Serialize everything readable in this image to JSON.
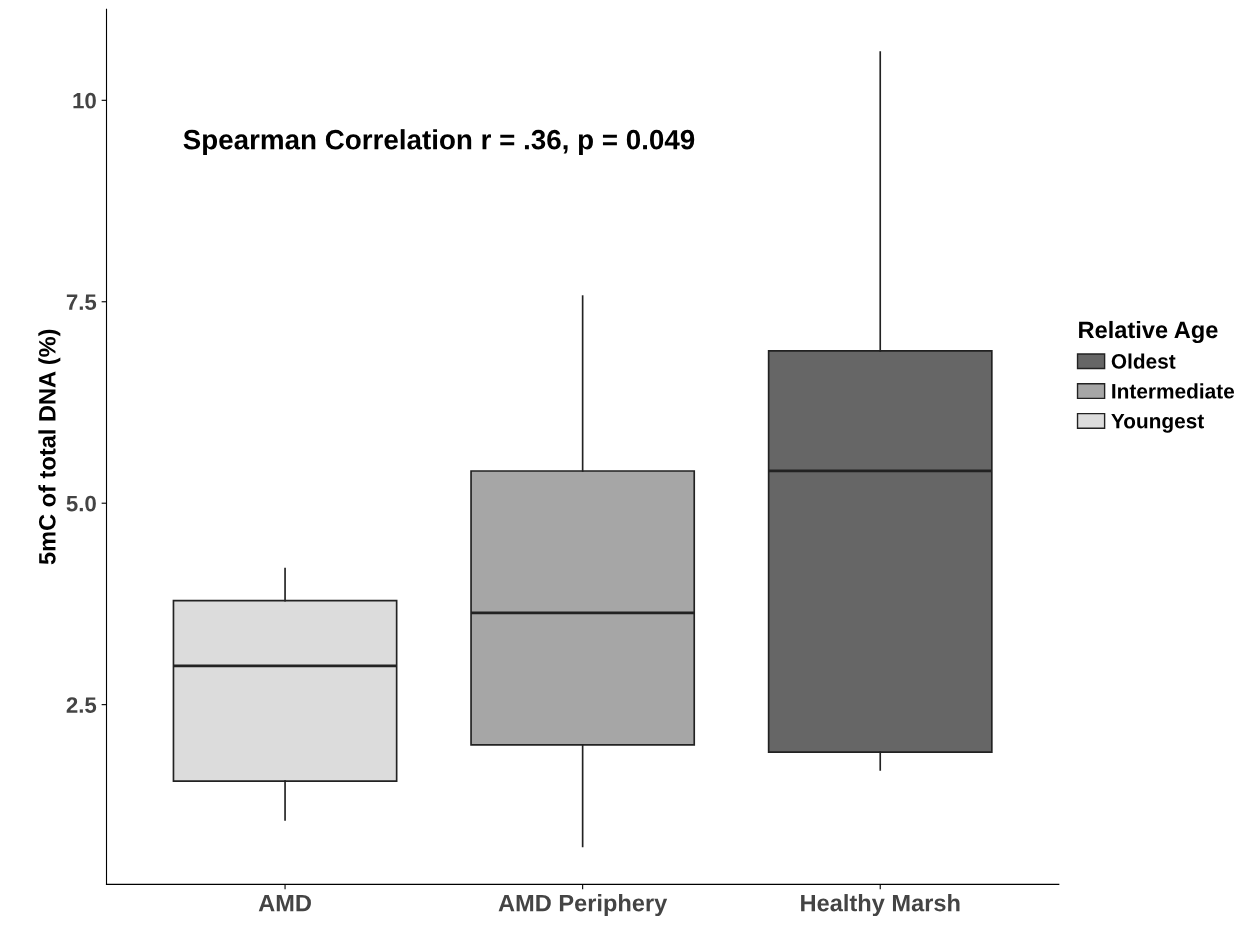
{
  "chart_data": {
    "type": "box",
    "ylabel": "5mC of total DNA (%)",
    "categories": [
      "AMD",
      "AMD Periphery",
      "Healthy Marsh"
    ],
    "ylim": [
      0.27,
      11.13
    ],
    "yticks": [
      {
        "value": 2.5,
        "label": "2.5"
      },
      {
        "value": 5.0,
        "label": "5.0"
      },
      {
        "value": 7.5,
        "label": "7.5"
      },
      10
    ],
    "legend_title": "Relative Age",
    "legend": "right",
    "grid": false,
    "annotations": [
      "Spearman Correlation r = .36, p = 0.049"
    ],
    "series": [
      {
        "name": "Oldest",
        "color": "#666666",
        "boxes": [
          null,
          null,
          {
            "low": 1.69,
            "q1": 1.91,
            "median": 5.4,
            "q3": 6.89,
            "high": 10.6
          }
        ]
      },
      {
        "name": "Intermediate",
        "color": "#a6a6a6",
        "boxes": [
          null,
          {
            "low": 0.74,
            "q1": 2.0,
            "median": 3.64,
            "q3": 5.4,
            "high": 7.57
          },
          null
        ]
      },
      {
        "name": "Youngest",
        "color": "#dcdcdc",
        "boxes": [
          {
            "low": 1.07,
            "q1": 1.55,
            "median": 2.98,
            "q3": 3.79,
            "high": 4.19
          },
          null,
          null
        ]
      }
    ]
  }
}
